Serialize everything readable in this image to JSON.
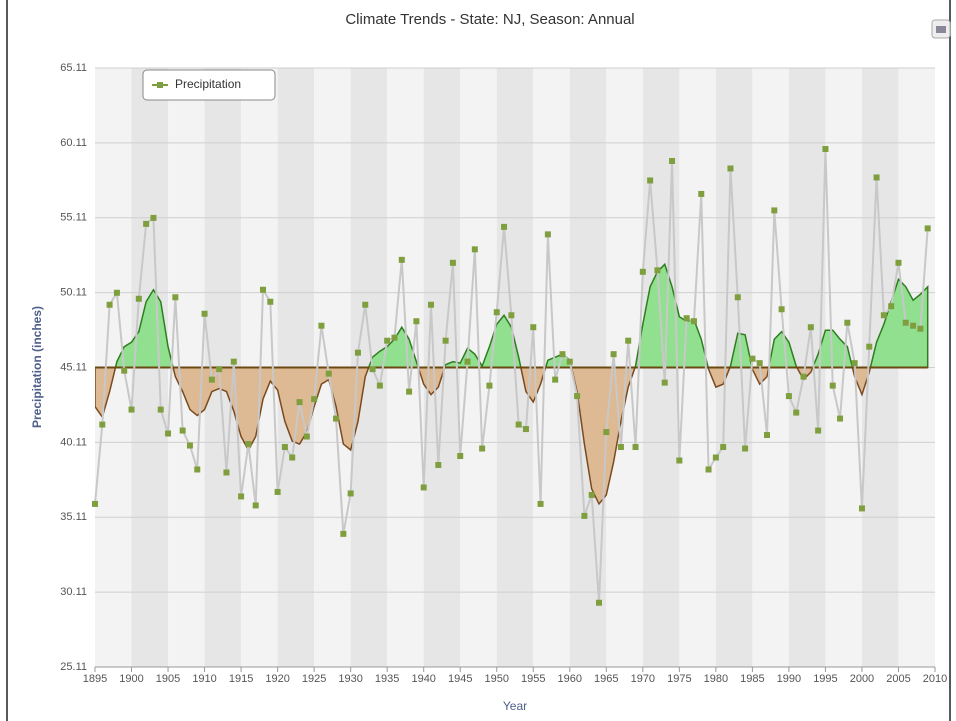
{
  "chart_data": {
    "type": "line",
    "title": "Climate Trends - State: NJ, Season: Annual",
    "xlabel": "Year",
    "ylabel": "Precipitation (inches)",
    "x": [
      1895,
      1896,
      1897,
      1898,
      1899,
      1900,
      1901,
      1902,
      1903,
      1904,
      1905,
      1906,
      1907,
      1908,
      1909,
      1910,
      1911,
      1912,
      1913,
      1914,
      1915,
      1916,
      1917,
      1918,
      1919,
      1920,
      1921,
      1922,
      1923,
      1924,
      1925,
      1926,
      1927,
      1928,
      1929,
      1930,
      1931,
      1932,
      1933,
      1934,
      1935,
      1936,
      1937,
      1938,
      1939,
      1940,
      1941,
      1942,
      1943,
      1944,
      1945,
      1946,
      1947,
      1948,
      1949,
      1950,
      1951,
      1952,
      1953,
      1954,
      1955,
      1956,
      1957,
      1958,
      1959,
      1960,
      1961,
      1962,
      1963,
      1964,
      1965,
      1966,
      1967,
      1968,
      1969,
      1970,
      1971,
      1972,
      1973,
      1974,
      1975,
      1976,
      1977,
      1978,
      1979,
      1980,
      1981,
      1982,
      1983,
      1984,
      1985,
      1986,
      1987,
      1988,
      1989,
      1990,
      1991,
      1992,
      1993,
      1994,
      1995,
      1996,
      1997,
      1998,
      1999,
      2000,
      2001,
      2002,
      2003,
      2004,
      2005,
      2006,
      2007,
      2008,
      2009
    ],
    "series": [
      {
        "name": "Precipitation",
        "color": "#7f9f3f",
        "line_color": "#c8c8c8",
        "values": [
          36.0,
          41.3,
          49.3,
          50.1,
          44.9,
          42.3,
          49.7,
          54.7,
          55.1,
          42.3,
          40.7,
          49.8,
          40.9,
          39.9,
          38.3,
          48.7,
          44.3,
          45.0,
          38.1,
          45.5,
          36.5,
          40.0,
          35.9,
          50.3,
          49.5,
          36.8,
          39.8,
          39.1,
          42.8,
          40.5,
          43.0,
          47.9,
          44.7,
          41.7,
          34.0,
          36.7,
          46.1,
          49.3,
          45.0,
          43.9,
          46.9,
          47.1,
          52.3,
          43.5,
          48.2,
          37.1,
          49.3,
          38.6,
          46.9,
          52.1,
          39.2,
          45.5,
          53.0,
          39.7,
          43.9,
          48.8,
          54.5,
          48.6,
          41.3,
          41.0,
          47.8,
          36.0,
          54.0,
          44.3,
          46.0,
          45.5,
          43.2,
          35.2,
          36.6,
          29.4,
          40.8,
          46.0,
          39.8,
          46.9,
          39.8,
          51.5,
          57.6,
          51.6,
          44.1,
          58.9,
          38.9,
          48.4,
          48.2,
          56.7,
          38.3,
          39.1,
          39.8,
          58.4,
          49.8,
          39.7,
          45.7,
          45.4,
          40.6,
          55.6,
          49.0,
          43.2,
          42.1,
          44.5,
          47.8,
          40.9,
          59.7,
          43.9,
          41.7,
          48.1,
          45.4,
          35.7,
          46.5,
          57.8,
          48.6,
          49.2,
          52.1,
          48.1,
          47.9,
          47.7,
          54.4
        ]
      },
      {
        "color": "#2e7d1f",
        "below_line_color": "#7a4a1e",
        "fill_above": "#90e090",
        "fill_below": "#ddb994",
        "values": [
          42.5,
          41.8,
          43.5,
          45.5,
          46.5,
          46.8,
          47.5,
          49.5,
          50.3,
          49.5,
          46.5,
          44.5,
          43.5,
          42.3,
          41.9,
          42.3,
          43.5,
          43.7,
          43.5,
          42.2,
          40.5,
          39.6,
          40.5,
          43.0,
          44.2,
          43.6,
          41.5,
          40.2,
          40.0,
          40.8,
          42.5,
          44.0,
          44.3,
          42.5,
          40.0,
          39.6,
          41.5,
          44.5,
          45.8,
          46.2,
          46.5,
          47.0,
          47.8,
          47.0,
          45.5,
          44.0,
          43.3,
          43.8,
          45.3,
          45.5,
          45.4,
          46.4,
          46.0,
          45.2,
          46.5,
          48.0,
          48.6,
          47.8,
          45.8,
          43.5,
          42.8,
          44.0,
          45.6,
          45.8,
          46.0,
          45.6,
          43.5,
          40.0,
          37.0,
          36.0,
          36.6,
          38.8,
          41.5,
          43.8,
          45.2,
          48.0,
          50.5,
          51.5,
          52.0,
          50.5,
          48.5,
          48.2,
          48.3,
          47.0,
          45.0,
          43.8,
          44.0,
          45.2,
          47.4,
          47.3,
          45.0,
          44.0,
          44.5,
          47.0,
          47.5,
          46.8,
          45.2,
          44.3,
          44.8,
          46.0,
          47.6,
          47.6,
          47.0,
          46.5,
          44.5,
          43.3,
          44.8,
          46.8,
          48.0,
          49.5,
          51.0,
          50.5,
          49.6,
          50.0,
          50.5
        ]
      }
    ],
    "baseline": 45.11,
    "xlim": [
      1895,
      2010
    ],
    "xticks": [
      1895,
      1900,
      1905,
      1910,
      1915,
      1920,
      1925,
      1930,
      1935,
      1940,
      1945,
      1950,
      1955,
      1960,
      1965,
      1970,
      1975,
      1980,
      1985,
      1990,
      1995,
      2000,
      2005,
      2010
    ],
    "ylim": [
      25.11,
      65.11
    ],
    "yticks": [
      25.11,
      30.11,
      35.11,
      40.11,
      45.11,
      50.11,
      55.11,
      60.11,
      65.11
    ],
    "grid": true,
    "legend": "upper left"
  }
}
